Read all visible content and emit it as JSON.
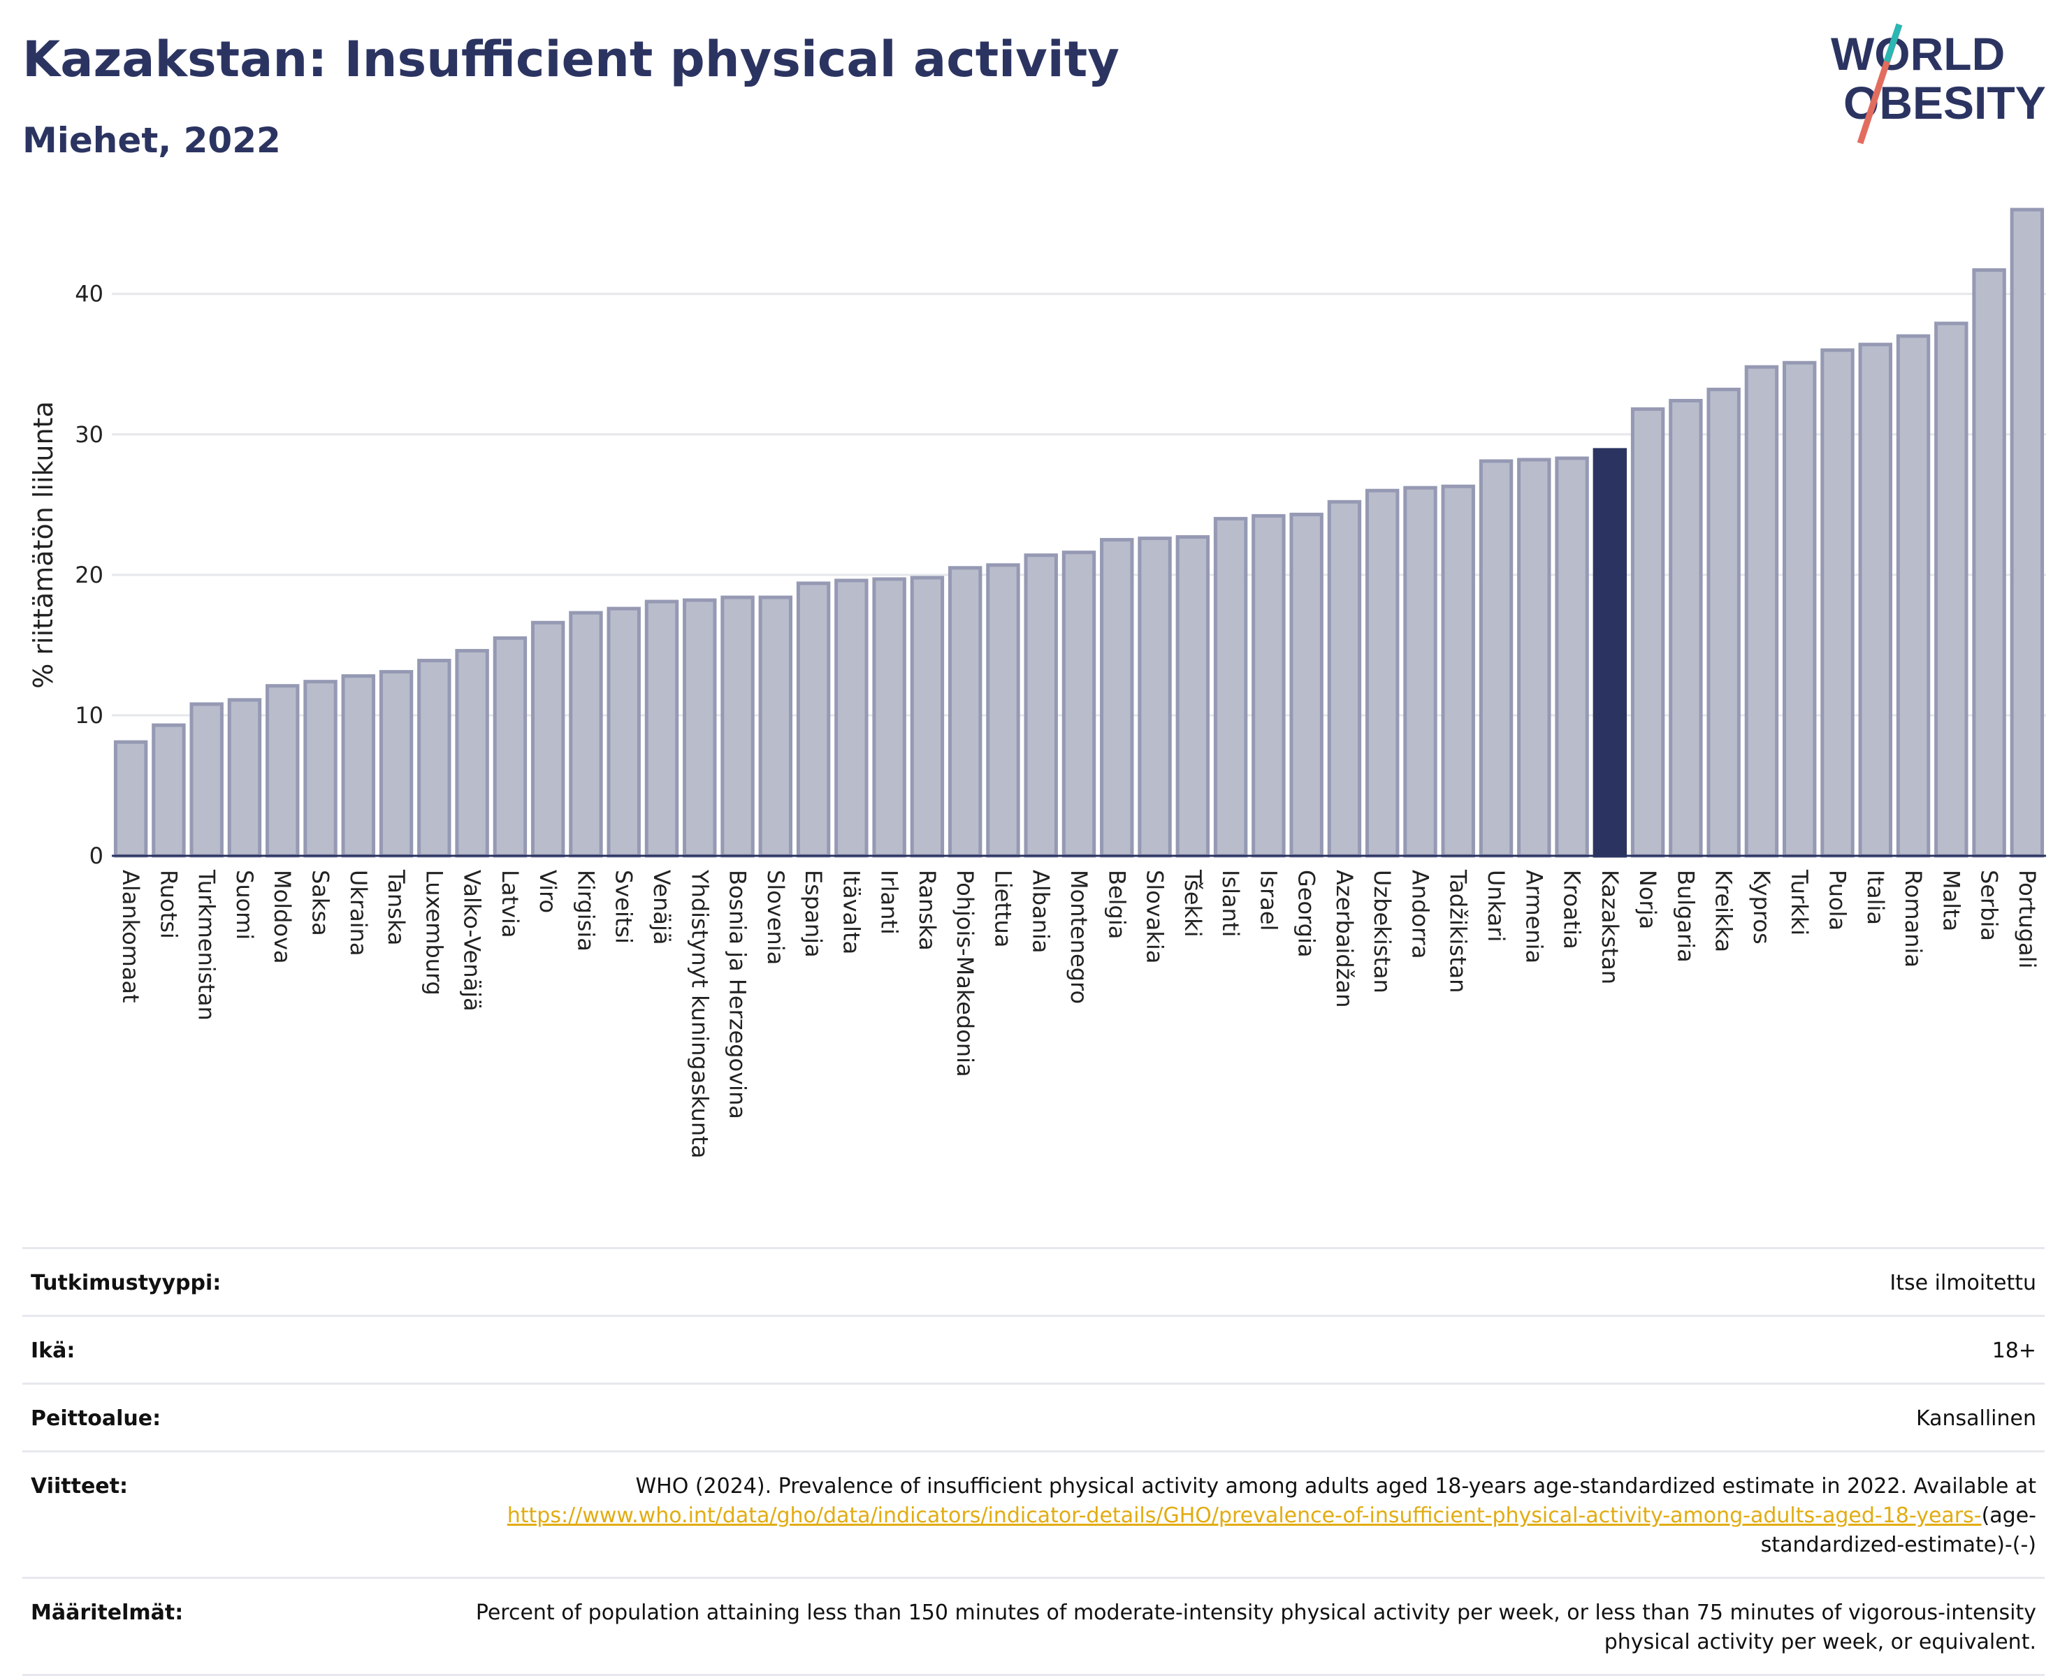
{
  "header": {
    "title": "Kazakstan: Insufficient physical activity",
    "subtitle": "Miehet, 2022"
  },
  "logo": {
    "line1": "WORLD",
    "line2": "OBESITY"
  },
  "colors": {
    "bar_fill": "#b9bccb",
    "bar_stroke": "#9599b3",
    "highlight": "#2b3461",
    "title": "#2b3461",
    "grid": "#e5e7eb",
    "link": "#e1ac12"
  },
  "chart_data": {
    "type": "bar",
    "title": "Kazakstan: Insufficient physical activity",
    "subtitle": "Miehet, 2022",
    "xlabel": "",
    "ylabel": "% riittämätön liikunta",
    "ylim": [
      0,
      46.5
    ],
    "yticks": [
      0,
      10,
      20,
      30,
      40
    ],
    "grid": true,
    "highlight": "Kazakstan",
    "categories": [
      "Alankomaat",
      "Ruotsi",
      "Turkmenistan",
      "Suomi",
      "Moldova",
      "Saksa",
      "Ukraina",
      "Tanska",
      "Luxemburg",
      "Valko-Venäjä",
      "Latvia",
      "Viro",
      "Kirgisia",
      "Sveitsi",
      "Venäjä",
      "Yhdistynyt kuningaskunta",
      "Bosnia ja Herzegovina",
      "Slovenia",
      "Espanja",
      "Itävalta",
      "Irlanti",
      "Ranska",
      "Pohjois-Makedonia",
      "Liettua",
      "Albania",
      "Montenegro",
      "Belgia",
      "Slovakia",
      "Tšekki",
      "Islanti",
      "Israel",
      "Georgia",
      "Azerbaidžan",
      "Uzbekistan",
      "Andorra",
      "Tadžikistan",
      "Unkari",
      "Armenia",
      "Kroatia",
      "Kazakstan",
      "Norja",
      "Bulgaria",
      "Kreikka",
      "Kypros",
      "Turkki",
      "Puola",
      "Italia",
      "Romania",
      "Malta",
      "Serbia",
      "Portugali"
    ],
    "values": [
      8.1,
      9.3,
      10.8,
      11.1,
      12.1,
      12.4,
      12.8,
      13.1,
      13.9,
      14.6,
      15.5,
      16.6,
      17.3,
      17.6,
      18.1,
      18.2,
      18.4,
      18.4,
      19.4,
      19.6,
      19.7,
      19.8,
      20.5,
      20.7,
      21.4,
      21.6,
      22.5,
      22.6,
      22.7,
      24.0,
      24.2,
      24.3,
      25.2,
      26.0,
      26.2,
      26.3,
      28.1,
      28.2,
      28.3,
      28.9,
      31.8,
      32.4,
      33.2,
      34.8,
      35.1,
      36.0,
      36.4,
      37.0,
      37.9,
      41.7,
      46.0
    ]
  },
  "info": [
    {
      "label": "Tutkimustyyppi:",
      "value": "Itse ilmoitettu"
    },
    {
      "label": "Ikä:",
      "value": "18+"
    },
    {
      "label": "Peittoalue:",
      "value": "Kansallinen"
    },
    {
      "label": "Viitteet:",
      "value": "WHO (2024). Prevalence of insufficient physical activity among adults aged 18-years age-standardized estimate in 2022. Available at",
      "link": "https://www.who.int/data/gho/data/indicators/indicator-details/GHO/prevalence-of-insufficient-physical-activity-among-adults-aged-18-years-",
      "after": "(age-standardized-estimate)-(-)"
    },
    {
      "label": "Määritelmät:",
      "value": "Percent of population attaining less than 150 minutes of moderate-intensity physical activity per week, or less than 75 minutes of vigorous-intensity physical activity per week, or equivalent."
    }
  ]
}
